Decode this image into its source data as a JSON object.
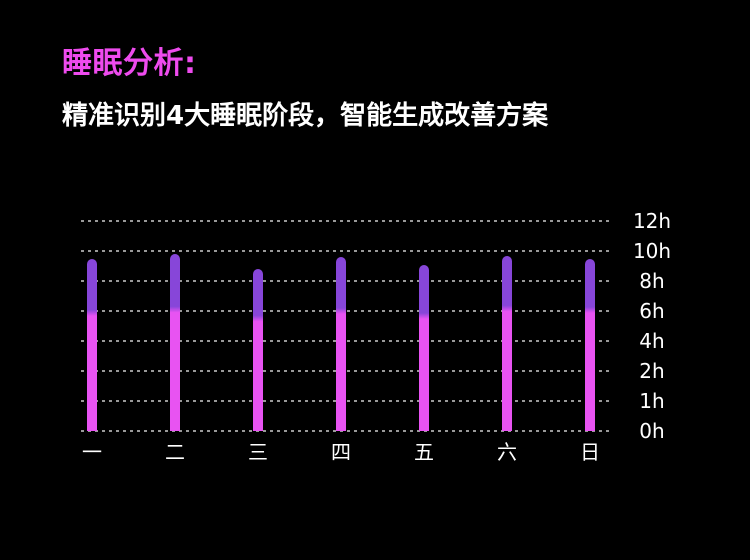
{
  "page": {
    "background": "#000000"
  },
  "header": {
    "title": "睡眠分析:",
    "title_color": "#ee4bee",
    "subtitle": "精准识别4大睡眠阶段，智能生成改善方案",
    "subtitle_color": "#ffffff"
  },
  "chart_data": {
    "type": "bar",
    "stacked": true,
    "title": "",
    "xlabel": "",
    "ylabel": "",
    "categories": [
      "一",
      "二",
      "三",
      "四",
      "五",
      "六",
      "日"
    ],
    "series": [
      {
        "name": "lower-segment",
        "color": "#e853f2",
        "values": [
          5.9,
          6.1,
          5.5,
          6.0,
          5.7,
          6.2,
          6.1
        ]
      },
      {
        "name": "upper-segment",
        "color": "#8746d9",
        "values": [
          3.6,
          3.7,
          3.3,
          3.6,
          3.4,
          3.5,
          3.4
        ]
      }
    ],
    "totals": [
      9.5,
      9.8,
      8.8,
      9.6,
      9.1,
      9.7,
      9.5
    ],
    "y_ticks": [
      {
        "label": "12h",
        "value": 12
      },
      {
        "label": "10h",
        "value": 10
      },
      {
        "label": "8h",
        "value": 8
      },
      {
        "label": "6h",
        "value": 6
      },
      {
        "label": "4h",
        "value": 4
      },
      {
        "label": "2h",
        "value": 2
      },
      {
        "label": "1h",
        "value": 1
      },
      {
        "label": "0h",
        "value": 0
      }
    ],
    "axis_note": "ticks evenly spaced on screen (non-linear value scale)",
    "grid": "horizontal-dotted",
    "grid_color": "#999999",
    "legend": "none",
    "label_color": "#ffffff"
  }
}
